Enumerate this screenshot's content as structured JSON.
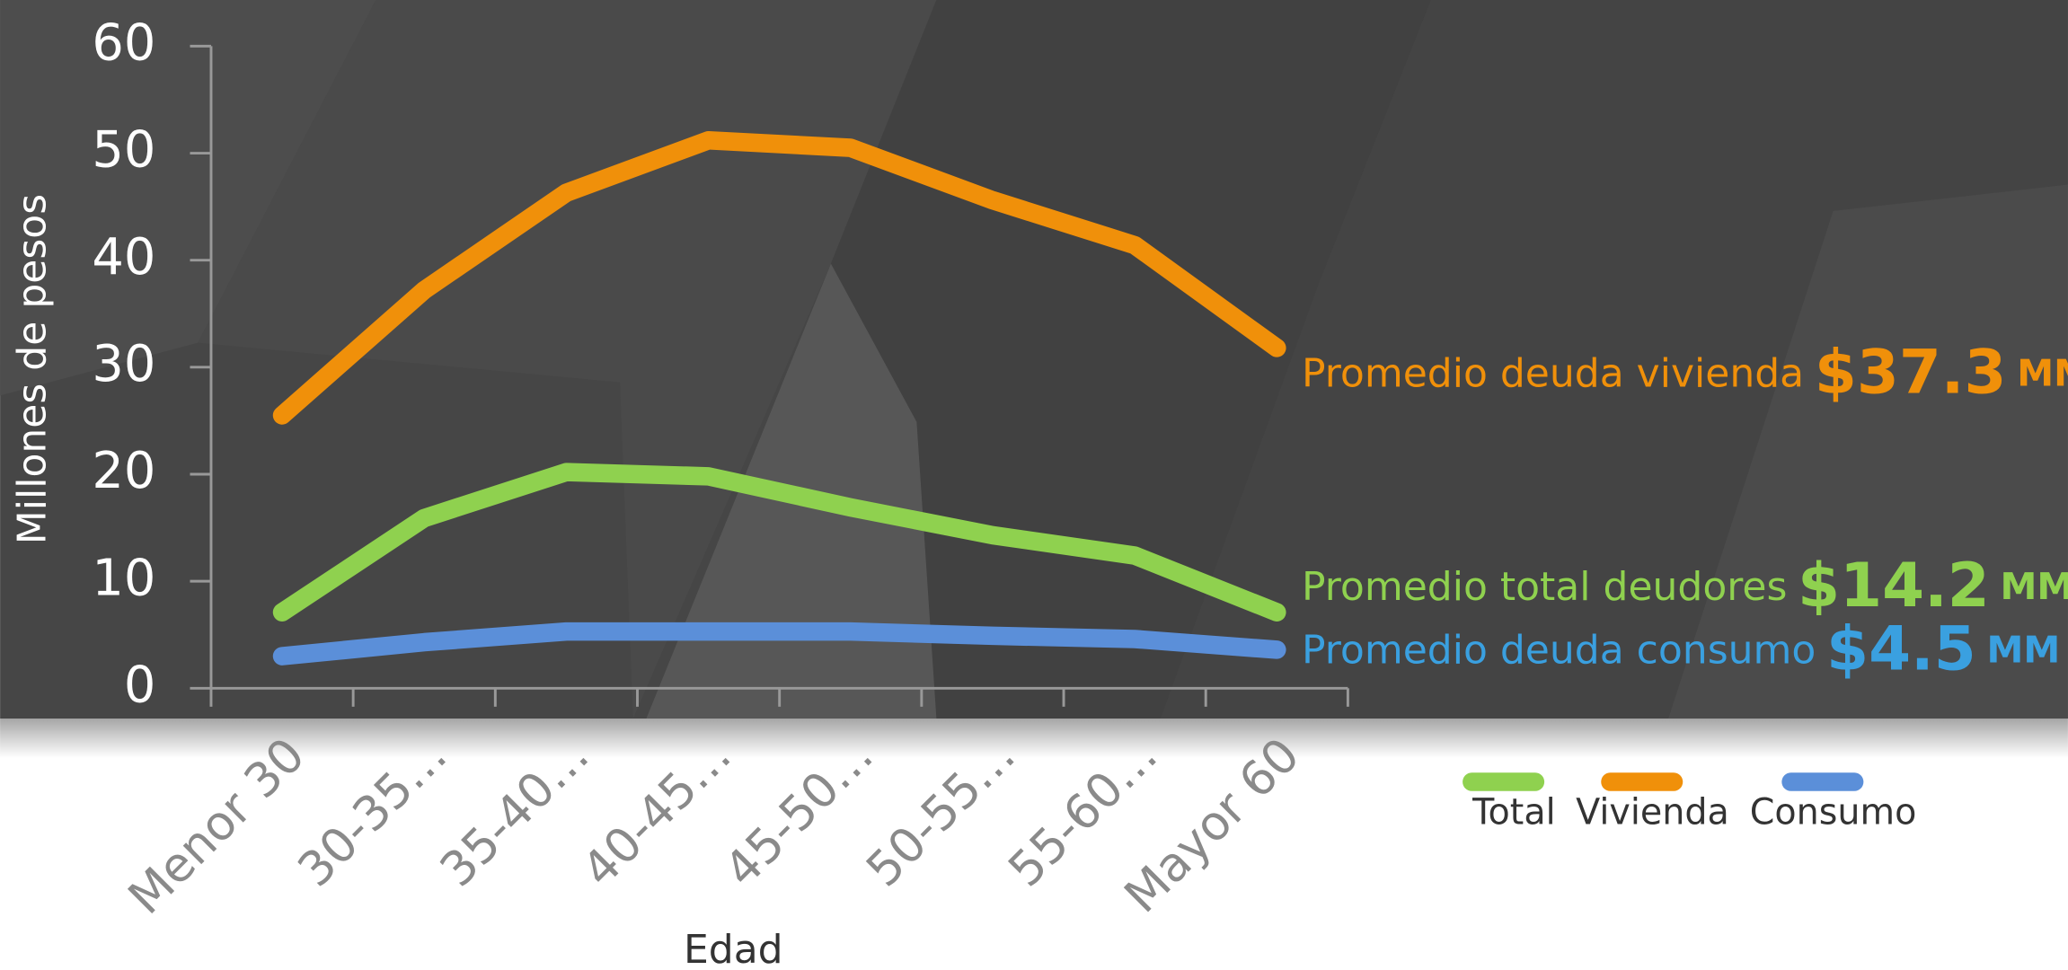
{
  "chart_data": {
    "type": "line",
    "y_label": "Millones de pesos",
    "x_label": "Edad",
    "categories": [
      "Menor 30",
      "30-35…",
      "35-40…",
      "40-45…",
      "45-50…",
      "50-55…",
      "55-60…",
      "Mayor 60"
    ],
    "series": [
      {
        "name": "Total",
        "color": "#8fd14f",
        "values": [
          7.1,
          15.9,
          20.2,
          19.8,
          16.9,
          14.3,
          12.4,
          7.1
        ]
      },
      {
        "name": "Vivienda",
        "color": "#f0900a",
        "values": [
          25.5,
          37.2,
          46.3,
          51.2,
          50.5,
          45.6,
          41.4,
          31.8
        ]
      },
      {
        "name": "Consumo",
        "color": "#5b8fd9",
        "values": [
          3.0,
          4.3,
          5.3,
          5.3,
          5.3,
          4.9,
          4.6,
          3.6
        ]
      }
    ],
    "ylim": [
      0,
      60
    ],
    "yticks": [
      0,
      10,
      20,
      30,
      40,
      50,
      60
    ],
    "annotations": [
      {
        "text": "Promedio deuda vivienda",
        "value": "$37.3",
        "unit": "MM",
        "color": "#f0900a"
      },
      {
        "text": "Promedio total deudores",
        "value": "$14.2",
        "unit": "MM",
        "color": "#8fd14f"
      },
      {
        "text": "Promedio deuda consumo",
        "value": "$4.5",
        "unit": "MM",
        "color": "#3aa0e0"
      }
    ],
    "legend": "bottom-right"
  }
}
